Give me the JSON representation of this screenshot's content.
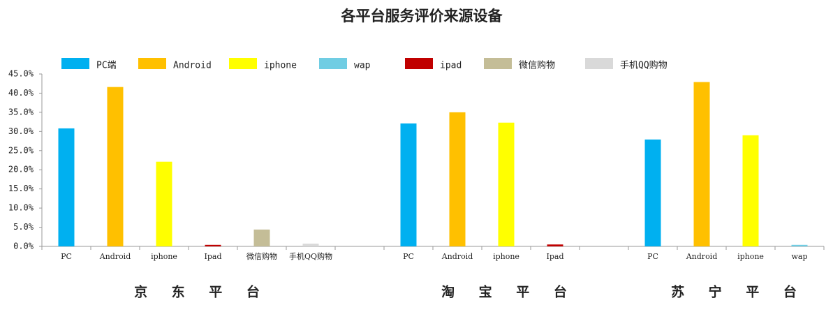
{
  "chart_data": {
    "type": "bar",
    "title": "各平台服务评价来源设备",
    "categories": [
      "PC",
      "Android",
      "iphone",
      "Ipad",
      "微信购物",
      "手机QQ购物",
      null,
      "PC",
      "Android",
      "iphone",
      "Ipad",
      null,
      "PC",
      "Android",
      "iphone",
      "wap"
    ],
    "series": [
      {
        "name": "PC端",
        "color": "#00b0f0",
        "values": [
          30.8,
          null,
          null,
          null,
          null,
          null,
          null,
          32.1,
          null,
          null,
          null,
          null,
          27.9,
          null,
          null,
          null
        ]
      },
      {
        "name": "Android",
        "color": "#ffc000",
        "values": [
          null,
          41.6,
          null,
          null,
          null,
          null,
          null,
          null,
          35.0,
          null,
          null,
          null,
          null,
          42.9,
          null,
          null
        ]
      },
      {
        "name": "iphone",
        "color": "#ffff00",
        "values": [
          null,
          null,
          22.1,
          null,
          null,
          null,
          null,
          null,
          null,
          32.3,
          null,
          null,
          null,
          null,
          29.0,
          null
        ]
      },
      {
        "name": "wap",
        "color": "#70cde3",
        "values": [
          null,
          null,
          null,
          null,
          null,
          null,
          null,
          null,
          null,
          null,
          null,
          null,
          null,
          null,
          null,
          0.4
        ]
      },
      {
        "name": "ipad",
        "color": "#c00000",
        "values": [
          null,
          null,
          null,
          0.4,
          null,
          null,
          null,
          null,
          null,
          null,
          0.5,
          null,
          null,
          null,
          null,
          null
        ]
      },
      {
        "name": "微信购物",
        "color": "#c4bd97",
        "values": [
          null,
          null,
          null,
          null,
          4.4,
          null,
          null,
          null,
          null,
          null,
          null,
          null,
          null,
          null,
          null,
          null
        ]
      },
      {
        "name": "手机QQ购物",
        "color": "#d9d9d9",
        "values": [
          null,
          null,
          null,
          null,
          null,
          0.7,
          null,
          null,
          null,
          null,
          null,
          null,
          null,
          null,
          null,
          null
        ]
      }
    ],
    "groups": [
      "京 东 平 台",
      "淘 宝 平 台",
      "苏 宁 平 台"
    ],
    "ylim": [
      0,
      45
    ],
    "yticks": [
      {
        "value": 0,
        "label": "0.0%"
      },
      {
        "value": 5,
        "label": "5.0%"
      },
      {
        "value": 10,
        "label": "10.0%"
      },
      {
        "value": 15,
        "label": "15.0%"
      },
      {
        "value": 20,
        "label": "20.0%"
      },
      {
        "value": 25,
        "label": "25.0%"
      },
      {
        "value": 30,
        "label": "30.0%"
      },
      {
        "value": 35,
        "label": "35.0%"
      },
      {
        "value": 40,
        "label": "40.0%"
      },
      {
        "value": 45,
        "label": "45.0%"
      }
    ],
    "grid": false
  }
}
